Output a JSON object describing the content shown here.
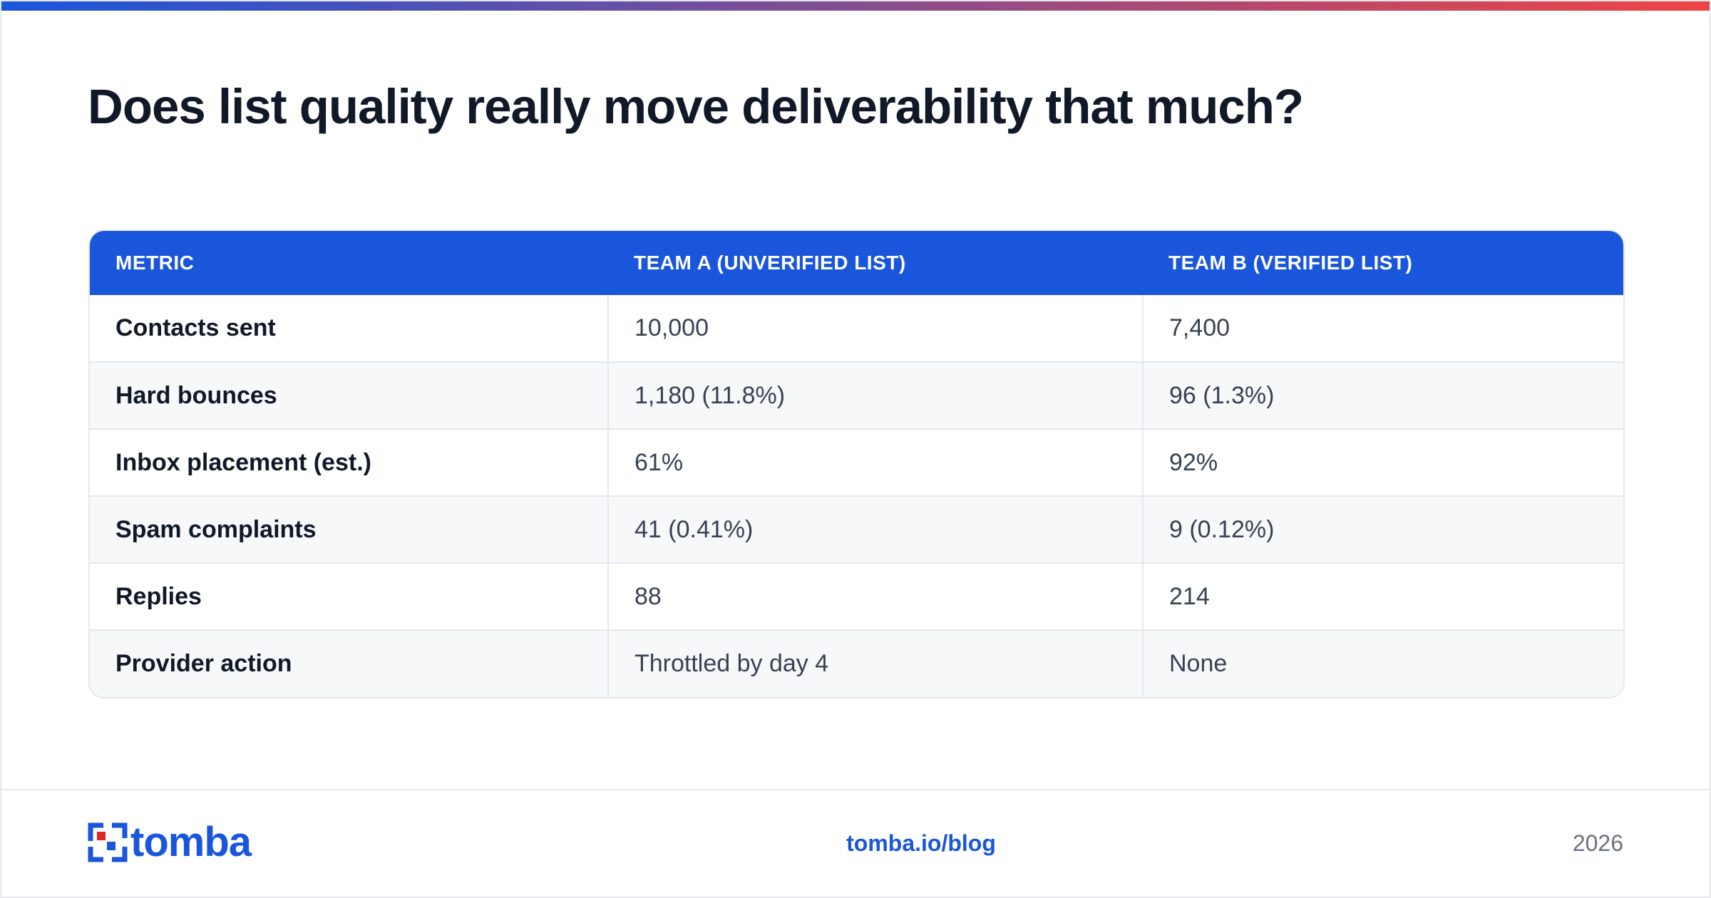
{
  "title": "Does list quality really move deliverability that much?",
  "colors": {
    "brand_blue": "#1a56db",
    "gradient_start": "#1a56db",
    "gradient_end": "#ef4444",
    "title_text": "#111827",
    "cell_text": "#374151",
    "muted_text": "#6b7280",
    "logo_red": "#e02424"
  },
  "table": {
    "headers": [
      "METRIC",
      "TEAM A (UNVERIFIED LIST)",
      "TEAM B (VERIFIED LIST)"
    ],
    "rows": [
      [
        "Contacts sent",
        "10,000",
        "7,400"
      ],
      [
        "Hard bounces",
        "1,180 (11.8%)",
        "96 (1.3%)"
      ],
      [
        "Inbox placement (est.)",
        "61%",
        "92%"
      ],
      [
        "Spam complaints",
        "41 (0.41%)",
        "9 (0.12%)"
      ],
      [
        "Replies",
        "88",
        "214"
      ],
      [
        "Provider action",
        "Throttled by day 4",
        "None"
      ]
    ]
  },
  "footer": {
    "logo_text": "tomba",
    "logo_icon": "tomba-logo-icon",
    "link": "tomba.io/blog",
    "year": "2026"
  }
}
